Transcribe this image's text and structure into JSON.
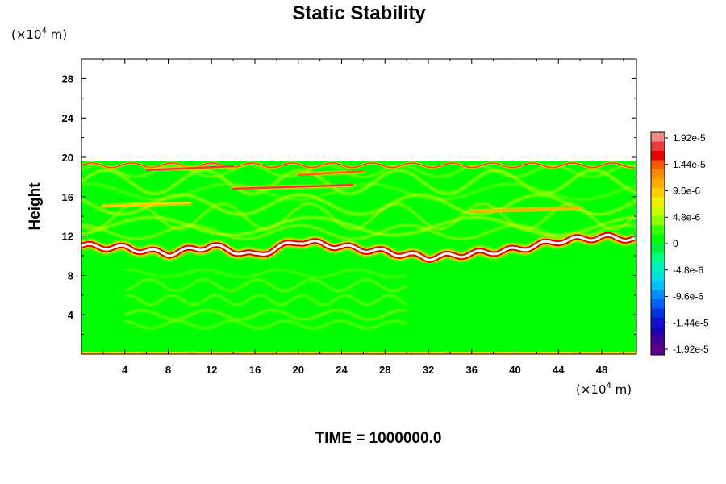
{
  "chart_data": {
    "type": "heatmap",
    "title": "Static Stability",
    "ylabel": "Height",
    "y_unit": {
      "prefix": "(×10",
      "exp": "4",
      "suffix": " m)"
    },
    "x_unit": {
      "prefix": "(×10",
      "exp": "4",
      "suffix": " m)"
    },
    "xlim": [
      0,
      51.2
    ],
    "ylim": [
      0,
      30
    ],
    "x_ticks": [
      "4",
      "8",
      "12",
      "16",
      "20",
      "24",
      "28",
      "32",
      "36",
      "40",
      "44",
      "48"
    ],
    "y_ticks": [
      "4",
      "8",
      "12",
      "16",
      "20",
      "24",
      "28"
    ],
    "colorbar": {
      "labels": [
        "1.92e-5",
        "1.44e-5",
        "9.6e-6",
        "4.8e-6",
        "0",
        "-4.8e-6",
        "-9.6e-6",
        "-1.44e-5",
        "-1.92e-5"
      ],
      "colors": [
        "#f08a8a",
        "#ef3a3a",
        "#e60000",
        "#ff5a00",
        "#ff8c00",
        "#ffb000",
        "#ffd000",
        "#f0f000",
        "#c8ff00",
        "#8cff00",
        "#3cff00",
        "#00ff00",
        "#00f040",
        "#00ff80",
        "#00f0c0",
        "#00e0e0",
        "#00c0ff",
        "#0090ff",
        "#0060ff",
        "#0030e0",
        "#1010c8",
        "#2000b0",
        "#400090",
        "#600090"
      ]
    },
    "features": {
      "field_top_km": 19.6,
      "tropopause_band": {
        "x": [
          0,
          4,
          8,
          12,
          16,
          20,
          24,
          28,
          32,
          36,
          40,
          44,
          48,
          51.2
        ],
        "y": [
          11.0,
          10.8,
          10.2,
          11.0,
          10.0,
          11.5,
          10.9,
          10.4,
          9.8,
          10.2,
          10.6,
          11.5,
          11.9,
          11.7
        ]
      }
    }
  },
  "footer": {
    "time_label": "TIME = 1000000.0"
  }
}
